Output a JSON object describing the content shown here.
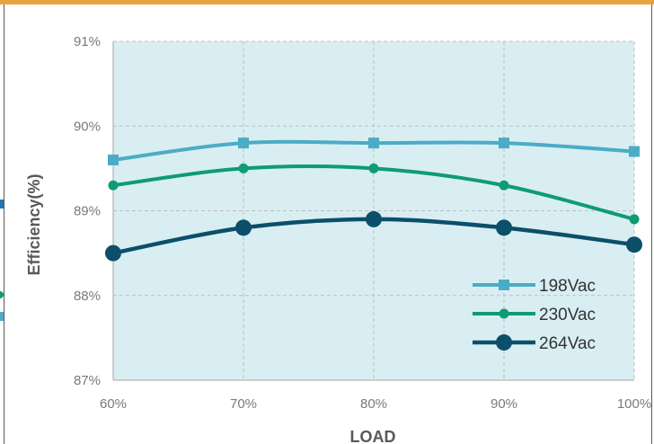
{
  "chart_data": {
    "type": "line",
    "title": "",
    "xlabel": "LOAD",
    "ylabel": "Efficiency(%)",
    "categories": [
      "60%",
      "70%",
      "80%",
      "90%",
      "100%"
    ],
    "ylim": [
      87,
      91
    ],
    "yticks": [
      87,
      88,
      89,
      90,
      91
    ],
    "ytick_labels": [
      "87%",
      "88%",
      "89%",
      "90%",
      "91%"
    ],
    "grid": true,
    "legend_position": "bottom-right",
    "series": [
      {
        "name": "198Vac",
        "color": "#4bacc6",
        "marker": "square",
        "values": [
          89.6,
          89.8,
          89.8,
          89.8,
          89.7
        ]
      },
      {
        "name": "230Vac",
        "color": "#0e9b76",
        "marker": "circle-small",
        "values": [
          89.3,
          89.5,
          89.5,
          89.3,
          88.9
        ]
      },
      {
        "name": "264Vac",
        "color": "#0c4f6b",
        "marker": "circle-large",
        "values": [
          88.5,
          88.8,
          88.9,
          88.8,
          88.6
        ]
      }
    ]
  },
  "colors": {
    "frame_border": "#e8a33c",
    "plot_background": "#d9eef2",
    "gridline": "#bfbfbf"
  }
}
